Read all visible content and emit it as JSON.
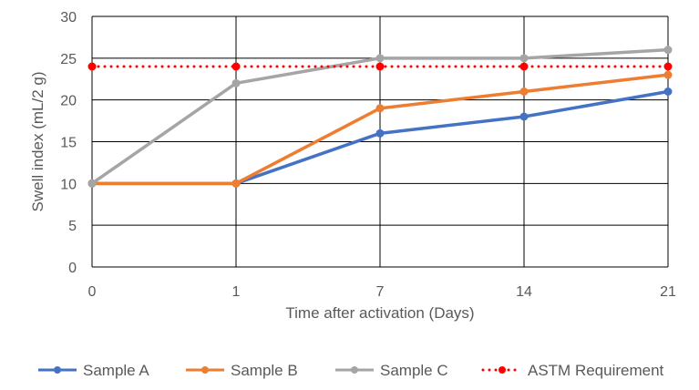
{
  "chart_data": {
    "type": "line",
    "title": "",
    "xlabel": "Time after activation (Days)",
    "ylabel": "Swell index (mL/2 g)",
    "categories": [
      "0",
      "1",
      "7",
      "14",
      "21"
    ],
    "ylim": [
      0,
      30
    ],
    "yticks": [
      0,
      5,
      10,
      15,
      20,
      25,
      30
    ],
    "grid": true,
    "legend_position": "bottom",
    "series": [
      {
        "name": "Sample A",
        "color": "#4472C4",
        "style": "solid",
        "values": [
          10,
          10,
          16,
          18,
          21
        ]
      },
      {
        "name": "Sample B",
        "color": "#ED7D31",
        "style": "solid",
        "values": [
          10,
          10,
          19,
          21,
          23
        ]
      },
      {
        "name": "Sample C",
        "color": "#A5A5A5",
        "style": "solid",
        "values": [
          10,
          22,
          25,
          25,
          26
        ]
      },
      {
        "name": "ASTM Requirement",
        "color": "#FF0000",
        "style": "dotted",
        "values": [
          24,
          24,
          24,
          24,
          24
        ]
      }
    ]
  }
}
